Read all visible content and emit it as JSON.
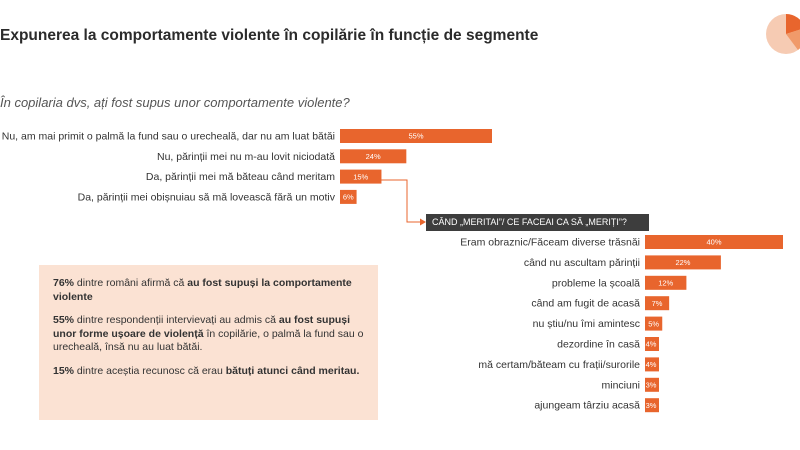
{
  "title": "Expunerea la comportamente violente în copilărie în funcție de segmente",
  "question": "În copilaria dvs, ați fost supus unor comportamente violente?",
  "colors": {
    "bar": "#e8652d",
    "header_bg": "#3d3d3d",
    "box_bg": "#fbe2d3",
    "connector": "#e8652d"
  },
  "icons": {
    "logo": "pie-chart-icon"
  },
  "chart_data": [
    {
      "type": "bar",
      "orientation": "horizontal",
      "categories": [
        "Nu, am mai primit o palmă la fund sau o urecheală, dar nu am luat bătăi",
        "Nu, părinții mei nu m-au lovit niciodată",
        "Da, părinții mei mă băteau când meritam",
        "Da, părinții mei obișnuiau să mă lovească fără un motiv"
      ],
      "values": [
        55,
        24,
        15,
        6
      ],
      "value_labels": [
        "55%",
        "24%",
        "15%",
        "6%"
      ],
      "unit": "%",
      "xlim": [
        0,
        55
      ]
    },
    {
      "type": "bar",
      "orientation": "horizontal",
      "title": "CÂND „MERITAI”/ CE FACEAI CA SĂ „MERIȚI”?",
      "categories": [
        "Eram obraznic/Făceam diverse trăsnăi",
        "când nu ascultam părinții",
        "probleme la școală",
        "când am fugit de acasă",
        "nu știu/nu îmi amintesc",
        "dezordine în casă",
        "mă certam/băteam cu frații/surorile",
        "minciuni",
        "ajungeam târziu acasă"
      ],
      "values": [
        40,
        22,
        12,
        7,
        5,
        4,
        4,
        3,
        3
      ],
      "value_labels": [
        "40%",
        "22%",
        "12%",
        "7%",
        "5%",
        "4%",
        "4%",
        "3%",
        "3%"
      ],
      "unit": "%",
      "xlim": [
        0,
        40
      ]
    }
  ],
  "info_box": {
    "p1_pct": "76%",
    "p1_text": " dintre români afirmă că ",
    "p1_bold": "au fost supuși la comportamente violente",
    "p2_pct": "55%",
    "p2_text": " dintre respondenții intervievați au admis că ",
    "p2_bold": "au fost supuși unor forme ușoare de violență",
    "p2_tail": " în copilărie, o palmă la fund sau o urecheală, însă nu au luat bătăi.",
    "p3_pct": "15%",
    "p3_text": " dintre aceștia recunosc că erau ",
    "p3_bold": "bătuți atunci când meritau."
  }
}
